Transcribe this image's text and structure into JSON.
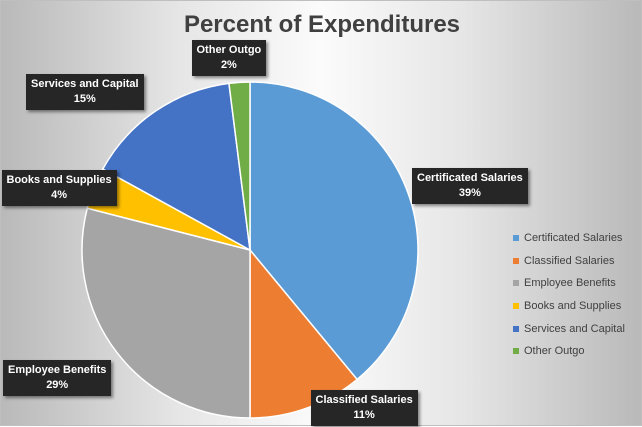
{
  "chart_data": {
    "type": "pie",
    "title": "Percent of Expenditures",
    "categories": [
      "Certificated Salaries",
      "Classified Salaries",
      "Employee Benefits",
      "Books and Supplies",
      "Services and Capital",
      "Other Outgo"
    ],
    "values": [
      39,
      11,
      29,
      4,
      15,
      2
    ],
    "value_labels": [
      "39%",
      "11%",
      "29%",
      "4%",
      "15%",
      "2%"
    ],
    "colors": [
      "#5b9bd5",
      "#ed7d31",
      "#a5a5a5",
      "#ffc000",
      "#4472c4",
      "#70ad47"
    ],
    "legend": "right",
    "start_angle_deg": 0,
    "direction": "clockwise"
  }
}
